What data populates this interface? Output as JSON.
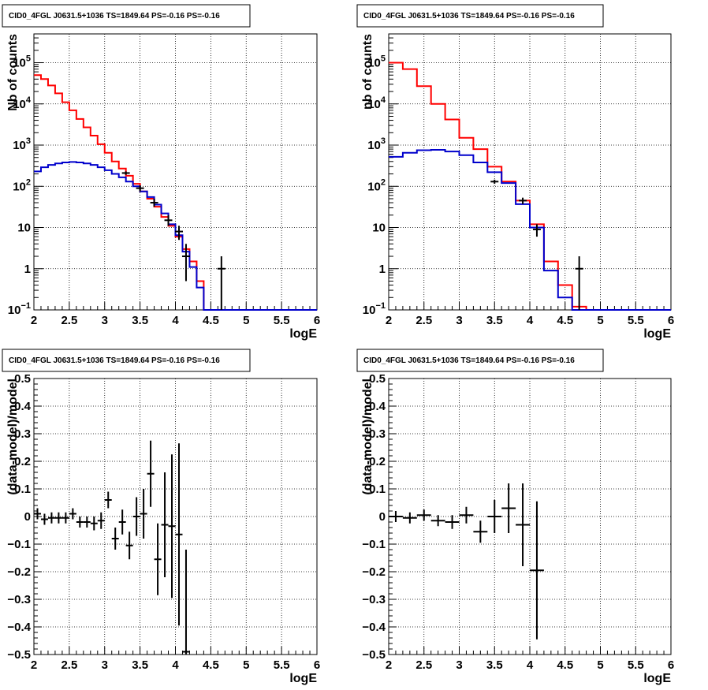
{
  "chart_data": [
    {
      "type": "line",
      "title": "CID0_4FGL J0631.5+1036 TS=1849.64 PS=-0.16 PS=-0.16",
      "xlabel": "logE",
      "ylabel": "Nb of counts",
      "xlim": [
        2,
        6
      ],
      "ylim": [
        0.1,
        500000
      ],
      "yscale": "log",
      "grid": true,
      "xticks": [
        "2",
        "2.5",
        "3",
        "3.5",
        "4",
        "4.5",
        "5",
        "5.5",
        "6"
      ],
      "yticks": [
        {
          "value": 0.1,
          "label": "10",
          "sup": "−1"
        },
        {
          "value": 1,
          "label": "1",
          "sup": ""
        },
        {
          "value": 10,
          "label": "10",
          "sup": ""
        },
        {
          "value": 100,
          "label": "10",
          "sup": "2"
        },
        {
          "value": 1000,
          "label": "10",
          "sup": "3"
        },
        {
          "value": 10000,
          "label": "10",
          "sup": "4"
        },
        {
          "value": 100000,
          "label": "10",
          "sup": "5"
        }
      ],
      "bin_edges": [
        2.0,
        2.1,
        2.2,
        2.3,
        2.4,
        2.5,
        2.6,
        2.7,
        2.8,
        2.9,
        3.0,
        3.1,
        3.2,
        3.3,
        3.4,
        3.5,
        3.6,
        3.7,
        3.8,
        3.9,
        4.0,
        4.1,
        4.2,
        4.3,
        4.4,
        4.5,
        4.6,
        4.7,
        4.8,
        4.9,
        5.0,
        5.1,
        5.2,
        5.3,
        5.4,
        5.5,
        5.6,
        5.7,
        5.8,
        5.9,
        6.0
      ],
      "series": [
        {
          "kind": "model-total",
          "color": "#ff0000",
          "values": [
            50000,
            40000,
            28000,
            18000,
            11000,
            7000,
            4300,
            2700,
            1700,
            1050,
            650,
            400,
            270,
            180,
            115,
            75,
            50,
            32,
            18,
            11,
            6,
            3,
            1.5,
            0.5,
            0.1,
            0.1,
            0.1,
            0.1,
            0.1,
            0.1,
            0.1,
            0.1,
            0.1,
            0.1,
            0.1,
            0.1,
            0.1,
            0.1,
            0.1,
            0.1
          ]
        },
        {
          "kind": "model-source",
          "color": "#0000cc",
          "values": [
            230,
            290,
            330,
            360,
            380,
            390,
            380,
            360,
            330,
            290,
            245,
            200,
            165,
            130,
            100,
            75,
            55,
            36,
            22,
            12,
            6.5,
            2.6,
            1.1,
            0.35,
            0.1,
            0.1,
            0.1,
            0.1,
            0.1,
            0.1,
            0.1,
            0.1,
            0.1,
            0.1,
            0.1,
            0.1,
            0.1,
            0.1,
            0.1,
            0.1
          ]
        }
      ],
      "data_points": [
        {
          "x": 3.3,
          "y": 210,
          "ylo": 190,
          "yhi": 230
        },
        {
          "x": 3.5,
          "y": 90,
          "ylo": 75,
          "yhi": 105
        },
        {
          "x": 3.7,
          "y": 40,
          "ylo": 32,
          "yhi": 50
        },
        {
          "x": 3.9,
          "y": 15,
          "ylo": 11,
          "yhi": 20
        },
        {
          "x": 4.05,
          "y": 8,
          "ylo": 5,
          "yhi": 11
        },
        {
          "x": 4.15,
          "y": 2,
          "ylo": 0.5,
          "yhi": 4
        },
        {
          "x": 4.65,
          "y": 1,
          "ylo": 0.1,
          "yhi": 2
        }
      ]
    },
    {
      "type": "line",
      "title": "CID0_4FGL J0631.5+1036 TS=1849.64 PS=-0.16 PS=-0.16",
      "xlabel": "logE",
      "ylabel": "nb of counts",
      "xlim": [
        2,
        6
      ],
      "ylim": [
        0.1,
        500000
      ],
      "yscale": "log",
      "grid": true,
      "xticks": [
        "2",
        "2.5",
        "3",
        "3.5",
        "4",
        "4.5",
        "5",
        "5.5",
        "6"
      ],
      "yticks": [
        {
          "value": 0.1,
          "label": "10",
          "sup": "−1"
        },
        {
          "value": 1,
          "label": "1",
          "sup": ""
        },
        {
          "value": 10,
          "label": "10",
          "sup": ""
        },
        {
          "value": 100,
          "label": "10",
          "sup": "2"
        },
        {
          "value": 1000,
          "label": "10",
          "sup": "3"
        },
        {
          "value": 10000,
          "label": "10",
          "sup": "4"
        },
        {
          "value": 100000,
          "label": "10",
          "sup": "5"
        }
      ],
      "bin_edges": [
        2.0,
        2.2,
        2.4,
        2.6,
        2.8,
        3.0,
        3.2,
        3.4,
        3.6,
        3.8,
        4.0,
        4.2,
        4.4,
        4.6,
        4.8,
        5.0,
        5.2,
        5.4,
        5.6,
        5.8,
        6.0
      ],
      "series": [
        {
          "kind": "model-total",
          "color": "#ff0000",
          "values": [
            100000,
            70000,
            27000,
            10000,
            4200,
            1500,
            800,
            300,
            130,
            45,
            12,
            1.5,
            0.4,
            0.12,
            0.1,
            0.1,
            0.1,
            0.1,
            0.1,
            0.1
          ]
        },
        {
          "kind": "model-source",
          "color": "#0000cc",
          "values": [
            520,
            650,
            750,
            770,
            700,
            570,
            380,
            220,
            120,
            37,
            10,
            0.9,
            0.2,
            0.1,
            0.1,
            0.1,
            0.1,
            0.1,
            0.1,
            0.1
          ]
        }
      ],
      "data_points": [
        {
          "x": 3.5,
          "y": 130,
          "ylo": 115,
          "yhi": 145
        },
        {
          "x": 3.9,
          "y": 45,
          "ylo": 37,
          "yhi": 53
        },
        {
          "x": 4.1,
          "y": 9,
          "ylo": 6,
          "yhi": 12
        },
        {
          "x": 4.7,
          "y": 1,
          "ylo": 0.1,
          "yhi": 2
        }
      ]
    },
    {
      "type": "scatter",
      "title": "CID0_4FGL J0631.5+1036 TS=1849.64 PS=-0.16 PS=-0.16",
      "xlabel": "logE",
      "ylabel": "(data-model)/model",
      "xlim": [
        2,
        6
      ],
      "ylim": [
        -0.5,
        0.5
      ],
      "grid": true,
      "xticks": [
        "2",
        "2.5",
        "3",
        "3.5",
        "4",
        "4.5",
        "5",
        "5.5",
        "6"
      ],
      "yticks": [
        "−0.5",
        "−0.4",
        "−0.3",
        "−0.2",
        "−0.1",
        "0",
        "0.1",
        "0.2",
        "0.3",
        "0.4",
        "0.5"
      ],
      "points": [
        {
          "x": 2.05,
          "y": 0.01,
          "err": 0.02
        },
        {
          "x": 2.15,
          "y": -0.01,
          "err": 0.02
        },
        {
          "x": 2.25,
          "y": -0.005,
          "err": 0.02
        },
        {
          "x": 2.35,
          "y": -0.005,
          "err": 0.02
        },
        {
          "x": 2.45,
          "y": -0.005,
          "err": 0.02
        },
        {
          "x": 2.55,
          "y": 0.01,
          "err": 0.02
        },
        {
          "x": 2.65,
          "y": -0.02,
          "err": 0.02
        },
        {
          "x": 2.75,
          "y": -0.02,
          "err": 0.02
        },
        {
          "x": 2.85,
          "y": -0.025,
          "err": 0.025
        },
        {
          "x": 2.95,
          "y": -0.015,
          "err": 0.03
        },
        {
          "x": 3.05,
          "y": 0.06,
          "err": 0.03
        },
        {
          "x": 3.15,
          "y": -0.08,
          "err": 0.04
        },
        {
          "x": 3.25,
          "y": -0.02,
          "err": 0.045
        },
        {
          "x": 3.35,
          "y": -0.105,
          "err": 0.05
        },
        {
          "x": 3.45,
          "y": 0.0,
          "err": 0.07
        },
        {
          "x": 3.55,
          "y": 0.01,
          "err": 0.09
        },
        {
          "x": 3.65,
          "y": 0.155,
          "err": 0.12
        },
        {
          "x": 3.75,
          "y": -0.155,
          "err": 0.13
        },
        {
          "x": 3.85,
          "y": -0.03,
          "err": 0.19
        },
        {
          "x": 3.95,
          "y": -0.035,
          "err": 0.26
        },
        {
          "x": 4.05,
          "y": -0.065,
          "err": 0.33
        },
        {
          "x": 4.15,
          "y": -0.49,
          "err": 0.37
        }
      ]
    },
    {
      "type": "scatter",
      "title": "CID0_4FGL J0631.5+1036 TS=1849.64 PS=-0.16 PS=-0.16",
      "xlabel": "logE",
      "ylabel": "(data-model)/model",
      "xlim": [
        2,
        6
      ],
      "ylim": [
        -0.5,
        0.5
      ],
      "grid": true,
      "xticks": [
        "2",
        "2.5",
        "3",
        "3.5",
        "4",
        "4.5",
        "5",
        "5.5",
        "6"
      ],
      "yticks": [
        "−0.5",
        "−0.4",
        "−0.3",
        "−0.2",
        "−0.1",
        "0",
        "0.1",
        "0.2",
        "0.3",
        "0.4",
        "0.5"
      ],
      "points": [
        {
          "x": 2.1,
          "y": 0.0,
          "err": 0.02
        },
        {
          "x": 2.3,
          "y": -0.005,
          "err": 0.02
        },
        {
          "x": 2.5,
          "y": 0.005,
          "err": 0.02
        },
        {
          "x": 2.7,
          "y": -0.015,
          "err": 0.02
        },
        {
          "x": 2.9,
          "y": -0.02,
          "err": 0.025
        },
        {
          "x": 3.1,
          "y": 0.005,
          "err": 0.03
        },
        {
          "x": 3.3,
          "y": -0.055,
          "err": 0.04
        },
        {
          "x": 3.5,
          "y": 0.0,
          "err": 0.06
        },
        {
          "x": 3.7,
          "y": 0.03,
          "err": 0.09
        },
        {
          "x": 3.9,
          "y": -0.03,
          "err": 0.15
        },
        {
          "x": 4.1,
          "y": -0.195,
          "err": 0.25
        }
      ]
    }
  ]
}
